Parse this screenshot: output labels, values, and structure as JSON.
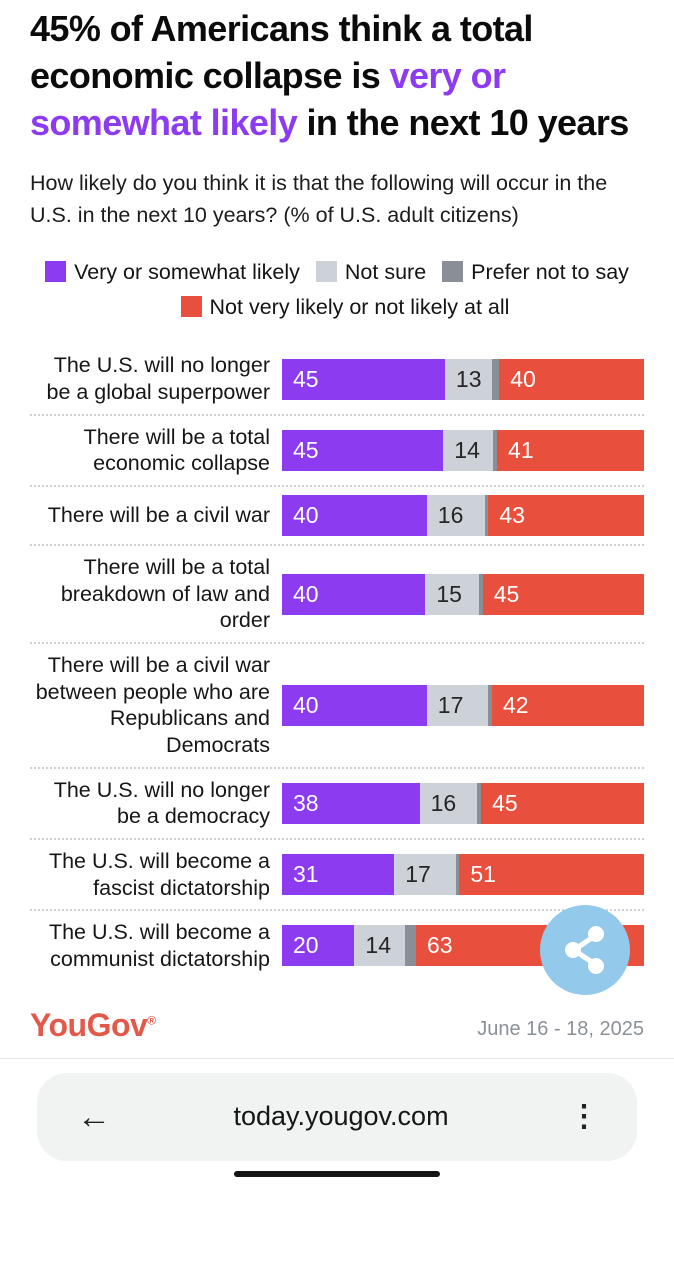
{
  "title": {
    "pre": "45% of Americans think a total economic collapse is ",
    "highlight": "very or somewhat likely",
    "post": " in the next 10 years"
  },
  "subtitle": "How likely do you think it is that the following will occur in the U.S. in the next 10 years? (% of U.S. adult citizens)",
  "legend": {
    "items": [
      {
        "label": "Very or somewhat likely",
        "color": "#8c3bf0"
      },
      {
        "label": "Not sure",
        "color": "#cdd1d8"
      },
      {
        "label": "Prefer not to say",
        "color": "#8a8e96"
      },
      {
        "label": "Not very likely or not likely at all",
        "color": "#e8503d"
      }
    ]
  },
  "colors": {
    "likely": "#8c3bf0",
    "not_sure": "#cdd1d8",
    "prefer_not_to_say": "#8a8e96",
    "not_likely": "#e8503d",
    "brand": "#e2594a",
    "share_button": "#93c9eb"
  },
  "chart_data": {
    "type": "bar",
    "orientation": "horizontal-stacked",
    "xlim": [
      0,
      100
    ],
    "unit": "% of U.S. adult citizens",
    "grid": false,
    "legend_position": "top",
    "categories": [
      "The U.S. will no longer be a global superpower",
      "There will be a total economic collapse",
      "There will be a civil war",
      "There will be a total breakdown of law and order",
      "There will be a civil war between people who are Republicans and Democrats",
      "The U.S. will no longer be a democracy",
      "The U.S. will become a fascist dictatorship",
      "The U.S. will become a communist dictatorship"
    ],
    "series": [
      {
        "name": "Very or somewhat likely",
        "values": [
          45,
          45,
          40,
          40,
          40,
          38,
          31,
          20
        ],
        "labeled": true
      },
      {
        "name": "Not sure",
        "values": [
          13,
          14,
          16,
          15,
          17,
          16,
          17,
          14
        ],
        "labeled": true
      },
      {
        "name": "Prefer not to say",
        "values": [
          2,
          1,
          1,
          1,
          1,
          1,
          1,
          3
        ],
        "labeled": false,
        "note": "thin unlabeled segment, values estimated from remainder"
      },
      {
        "name": "Not very likely or not likely at all",
        "values": [
          40,
          41,
          43,
          45,
          42,
          45,
          51,
          63
        ],
        "labeled": true
      }
    ]
  },
  "footer": {
    "brand": "YouGov",
    "registered": "®",
    "date_range": "June 16 - 18, 2025"
  },
  "browser": {
    "url": "today.yougov.com"
  },
  "icons": {
    "back": "←",
    "menu": "⋮"
  }
}
